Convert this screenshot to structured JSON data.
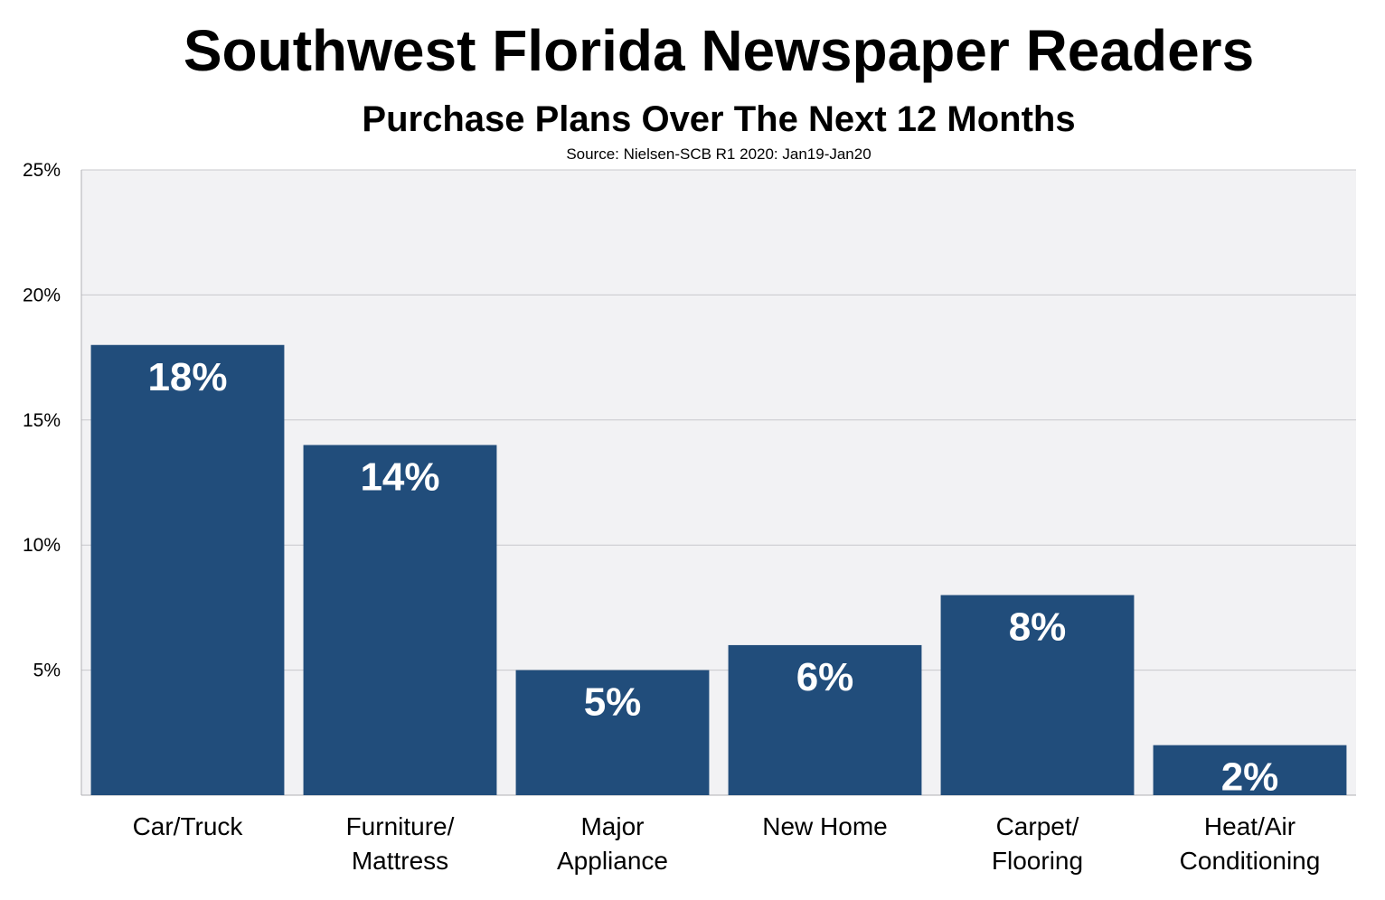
{
  "chart_data": {
    "type": "bar",
    "title": "Southwest Florida Newspaper Readers",
    "subtitle": "Purchase Plans Over The Next 12 Months",
    "source": "Source: Nielsen-SCB R1 2020: Jan19-Jan20",
    "categories": [
      [
        "Car/Truck"
      ],
      [
        "Furniture/",
        "Mattress"
      ],
      [
        "Major",
        "Appliance"
      ],
      [
        "New Home"
      ],
      [
        "Carpet/",
        "Flooring"
      ],
      [
        "Heat/Air",
        "Conditioning"
      ]
    ],
    "values": [
      18,
      14,
      5,
      6,
      8,
      2
    ],
    "data_labels": [
      "18%",
      "14%",
      "5%",
      "6%",
      "8%",
      "2%"
    ],
    "ylim": [
      0,
      25
    ],
    "yticks": [
      5,
      10,
      15,
      20,
      25
    ],
    "ytick_labels": [
      "5%",
      "10%",
      "15%",
      "20%",
      "25%"
    ],
    "grid": true,
    "legend": "none",
    "xlabel": "",
    "ylabel": "",
    "colors": {
      "bar": "#214d7b",
      "plot_bg": "#f2f2f4",
      "grid": "#c8c8cc"
    }
  }
}
